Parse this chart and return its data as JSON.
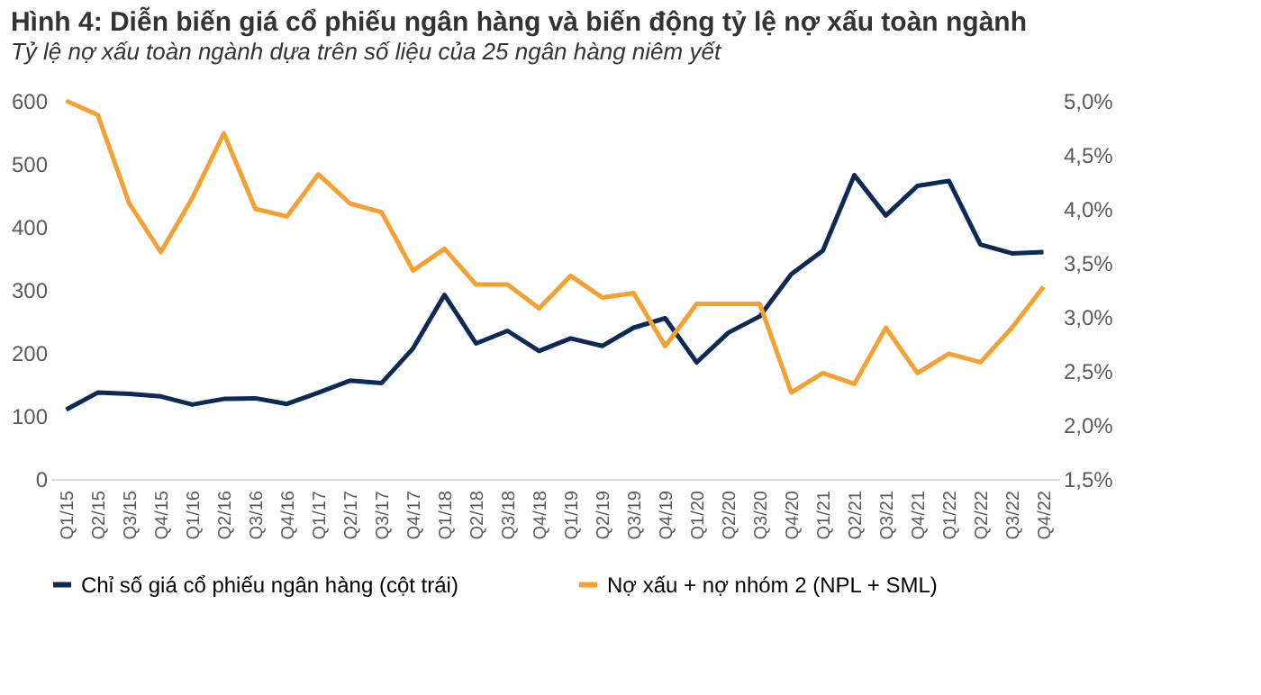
{
  "chart_data": {
    "type": "line",
    "title": "Hình 4: Diễn biến giá cổ phiếu ngân hàng và biến động tỷ lệ nợ xấu toàn ngành",
    "subtitle": "Tỷ lệ nợ xấu toàn ngành dựa trên số liệu của 25 ngân hàng niêm yết",
    "categories": [
      "Q1/15",
      "Q2/15",
      "Q3/15",
      "Q4/15",
      "Q1/16",
      "Q2/16",
      "Q3/16",
      "Q4/16",
      "Q1/17",
      "Q2/17",
      "Q3/17",
      "Q4/17",
      "Q1/18",
      "Q2/18",
      "Q3/18",
      "Q4/18",
      "Q1/19",
      "Q2/19",
      "Q3/19",
      "Q4/19",
      "Q1/20",
      "Q2/20",
      "Q3/20",
      "Q4/20",
      "Q1/21",
      "Q2/21",
      "Q3/21",
      "Q4/21",
      "Q1/22",
      "Q2/22",
      "Q3/22",
      "Q4/22"
    ],
    "series": [
      {
        "name": "Chỉ số giá cổ phiếu ngân hàng (cột trái)",
        "color": "#0d2a56",
        "values": [
          110,
          137,
          135,
          131,
          118,
          127,
          128,
          119,
          137,
          156,
          152,
          207,
          292,
          215,
          235,
          203,
          223,
          211,
          240,
          255,
          185,
          232,
          258,
          325,
          362,
          482,
          418,
          465,
          473,
          372,
          358,
          360
        ]
      },
      {
        "name": "Nợ xấu + nợ nhóm 2 (NPL + SML)",
        "color": "#f5a030",
        "axis": "y2",
        "values": [
          5.0,
          4.87,
          4.05,
          3.6,
          4.1,
          4.7,
          4.0,
          3.93,
          4.32,
          4.05,
          3.97,
          3.43,
          3.63,
          3.3,
          3.3,
          3.08,
          3.38,
          3.18,
          3.22,
          2.73,
          3.12,
          3.12,
          3.12,
          2.3,
          2.48,
          2.38,
          2.9,
          2.48,
          2.66,
          2.58,
          2.9,
          3.28
        ]
      }
    ],
    "ylim": [
      0,
      600
    ],
    "yticks": [
      0,
      100,
      200,
      300,
      400,
      500,
      600
    ],
    "y2lim": [
      1.5,
      5.0
    ],
    "y2ticks": [
      {
        "value": 1.5,
        "label": "1,5%"
      },
      {
        "value": 2.0,
        "label": "2,0%"
      },
      {
        "value": 2.5,
        "label": "2,5%"
      },
      {
        "value": 3.0,
        "label": "3,0%"
      },
      {
        "value": 3.5,
        "label": "3,5%"
      },
      {
        "value": 4.0,
        "label": "4,0%"
      },
      {
        "value": 4.5,
        "label": "4,5%"
      },
      {
        "value": 5.0,
        "label": "5,0%"
      }
    ],
    "grid": false,
    "legend": "bottom",
    "marker": "none",
    "line_style": "solid"
  }
}
